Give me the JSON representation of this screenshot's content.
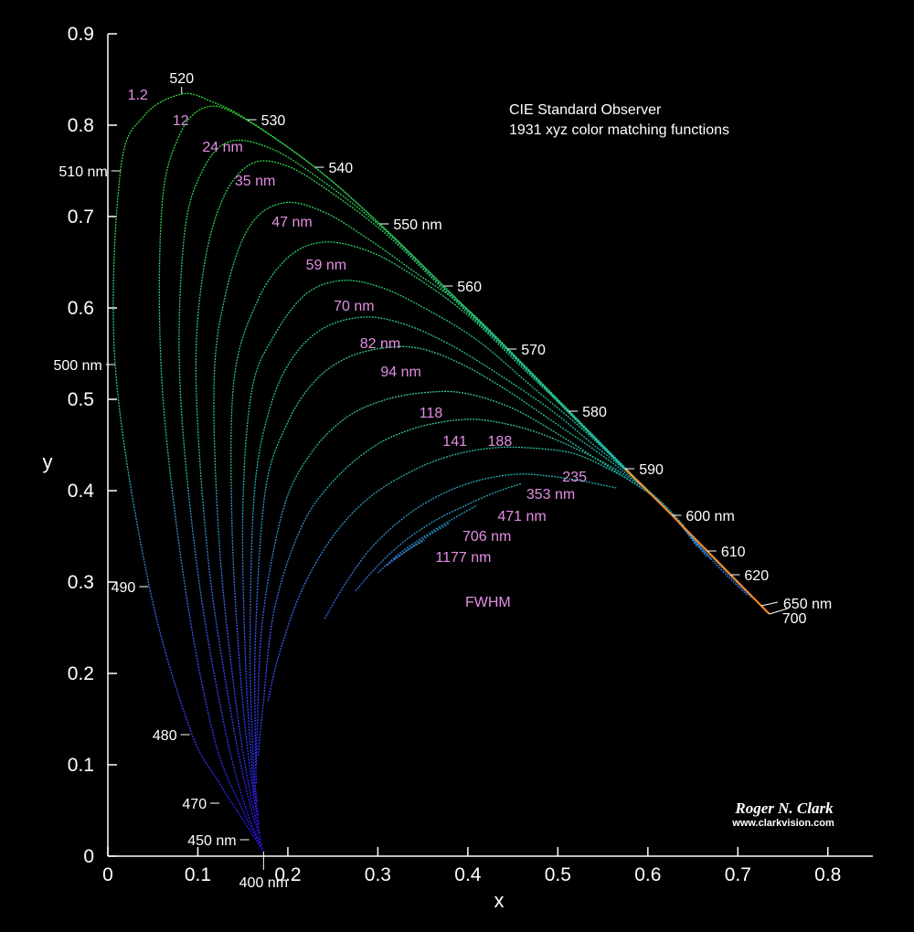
{
  "chart_data": {
    "type": "line",
    "title": [
      "CIE Standard Observer",
      "1931 xyz color matching functions"
    ],
    "xlabel": "x",
    "ylabel": "y",
    "xlim": [
      0,
      0.85
    ],
    "ylim": [
      0,
      0.9
    ],
    "xticks": [
      "0",
      "0.1",
      "0.2",
      "0.3",
      "0.4",
      "0.5",
      "0.6",
      "0.7",
      "0.8"
    ],
    "yticks": [
      "0",
      "0.1",
      "0.2",
      "0.3",
      "0.4",
      "0.5",
      "0.6",
      "0.7",
      "0.8",
      "0.9"
    ],
    "spectral_locus_labels": [
      {
        "text": "520",
        "x": 0.082,
        "y": 0.834
      },
      {
        "text": "530",
        "x": 0.155,
        "y": 0.806
      },
      {
        "text": "540",
        "x": 0.23,
        "y": 0.754
      },
      {
        "text": "550 nm",
        "x": 0.302,
        "y": 0.692
      },
      {
        "text": "560",
        "x": 0.373,
        "y": 0.624
      },
      {
        "text": "570",
        "x": 0.444,
        "y": 0.555
      },
      {
        "text": "580",
        "x": 0.512,
        "y": 0.487
      },
      {
        "text": "590",
        "x": 0.575,
        "y": 0.424
      },
      {
        "text": "600 nm",
        "x": 0.627,
        "y": 0.373
      },
      {
        "text": "610",
        "x": 0.666,
        "y": 0.334
      },
      {
        "text": "620",
        "x": 0.692,
        "y": 0.308
      },
      {
        "text": "650 nm",
        "x": 0.726,
        "y": 0.274
      },
      {
        "text": "700",
        "x": 0.735,
        "y": 0.265
      },
      {
        "text": "510 nm",
        "x": 0.014,
        "y": 0.75
      },
      {
        "text": "500 nm",
        "x": 0.008,
        "y": 0.538
      },
      {
        "text": "490",
        "x": 0.045,
        "y": 0.295
      },
      {
        "text": "480",
        "x": 0.091,
        "y": 0.133
      },
      {
        "text": "470",
        "x": 0.124,
        "y": 0.058
      },
      {
        "text": "450 nm",
        "x": 0.157,
        "y": 0.018
      },
      {
        "text": "400 nm",
        "x": 0.173,
        "y": 0.005
      }
    ],
    "fwhm_title": "FWHM",
    "series": [
      {
        "name": "1.2",
        "color": "#33dd33",
        "points": [
          [
            0.173,
            0.005
          ],
          [
            0.15,
            0.04
          ],
          [
            0.124,
            0.08
          ],
          [
            0.091,
            0.14
          ],
          [
            0.045,
            0.3
          ],
          [
            0.008,
            0.54
          ],
          [
            0.014,
            0.75
          ],
          [
            0.04,
            0.81
          ],
          [
            0.082,
            0.834
          ],
          [
            0.115,
            0.826
          ],
          [
            0.155,
            0.806
          ],
          [
            0.23,
            0.754
          ],
          [
            0.302,
            0.692
          ],
          [
            0.373,
            0.624
          ],
          [
            0.444,
            0.555
          ],
          [
            0.512,
            0.487
          ],
          [
            0.575,
            0.424
          ],
          [
            0.627,
            0.373
          ],
          [
            0.666,
            0.334
          ],
          [
            0.692,
            0.308
          ],
          [
            0.726,
            0.274
          ],
          [
            0.735,
            0.265
          ]
        ]
      },
      {
        "name": "12",
        "color": "#33dd33",
        "points": [
          [
            0.172,
            0.008
          ],
          [
            0.15,
            0.05
          ],
          [
            0.118,
            0.13
          ],
          [
            0.085,
            0.3
          ],
          [
            0.06,
            0.52
          ],
          [
            0.06,
            0.71
          ],
          [
            0.08,
            0.79
          ],
          [
            0.11,
            0.82
          ],
          [
            0.15,
            0.808
          ],
          [
            0.23,
            0.754
          ],
          [
            0.302,
            0.692
          ],
          [
            0.373,
            0.624
          ],
          [
            0.444,
            0.555
          ],
          [
            0.512,
            0.487
          ],
          [
            0.575,
            0.424
          ],
          [
            0.627,
            0.373
          ],
          [
            0.69,
            0.31
          ],
          [
            0.73,
            0.27
          ]
        ]
      },
      {
        "name": "24 nm",
        "color": "#33dd33",
        "points": [
          [
            0.171,
            0.012
          ],
          [
            0.154,
            0.05
          ],
          [
            0.13,
            0.14
          ],
          [
            0.1,
            0.31
          ],
          [
            0.08,
            0.52
          ],
          [
            0.085,
            0.68
          ],
          [
            0.105,
            0.75
          ],
          [
            0.135,
            0.782
          ],
          [
            0.18,
            0.775
          ],
          [
            0.23,
            0.745
          ],
          [
            0.302,
            0.69
          ],
          [
            0.373,
            0.622
          ],
          [
            0.444,
            0.554
          ],
          [
            0.512,
            0.486
          ],
          [
            0.575,
            0.423
          ],
          [
            0.627,
            0.373
          ],
          [
            0.69,
            0.31
          ],
          [
            0.728,
            0.272
          ]
        ]
      },
      {
        "name": "35 nm",
        "color": "#33dd33",
        "points": [
          [
            0.17,
            0.018
          ],
          [
            0.157,
            0.06
          ],
          [
            0.138,
            0.15
          ],
          [
            0.112,
            0.32
          ],
          [
            0.098,
            0.52
          ],
          [
            0.106,
            0.64
          ],
          [
            0.128,
            0.72
          ],
          [
            0.16,
            0.758
          ],
          [
            0.2,
            0.755
          ],
          [
            0.25,
            0.725
          ],
          [
            0.31,
            0.68
          ],
          [
            0.373,
            0.62
          ],
          [
            0.444,
            0.553
          ],
          [
            0.512,
            0.485
          ],
          [
            0.575,
            0.423
          ],
          [
            0.627,
            0.373
          ],
          [
            0.688,
            0.312
          ],
          [
            0.725,
            0.275
          ]
        ]
      },
      {
        "name": "47 nm",
        "color": "#33dd33",
        "points": [
          [
            0.169,
            0.025
          ],
          [
            0.158,
            0.07
          ],
          [
            0.142,
            0.17
          ],
          [
            0.124,
            0.34
          ],
          [
            0.118,
            0.52
          ],
          [
            0.132,
            0.62
          ],
          [
            0.158,
            0.69
          ],
          [
            0.195,
            0.715
          ],
          [
            0.24,
            0.705
          ],
          [
            0.29,
            0.675
          ],
          [
            0.34,
            0.64
          ],
          [
            0.4,
            0.598
          ],
          [
            0.46,
            0.54
          ],
          [
            0.52,
            0.48
          ],
          [
            0.58,
            0.42
          ],
          [
            0.627,
            0.373
          ],
          [
            0.685,
            0.315
          ],
          [
            0.72,
            0.28
          ]
        ]
      },
      {
        "name": "59 nm",
        "color": "#33dd33",
        "points": [
          [
            0.168,
            0.035
          ],
          [
            0.16,
            0.08
          ],
          [
            0.148,
            0.19
          ],
          [
            0.138,
            0.36
          ],
          [
            0.14,
            0.52
          ],
          [
            0.165,
            0.605
          ],
          [
            0.2,
            0.655
          ],
          [
            0.24,
            0.672
          ],
          [
            0.29,
            0.662
          ],
          [
            0.34,
            0.635
          ],
          [
            0.4,
            0.592
          ],
          [
            0.46,
            0.535
          ],
          [
            0.52,
            0.478
          ],
          [
            0.58,
            0.418
          ],
          [
            0.627,
            0.373
          ],
          [
            0.68,
            0.318
          ],
          [
            0.715,
            0.283
          ]
        ]
      },
      {
        "name": "70 nm",
        "color": "#33dd33",
        "points": [
          [
            0.167,
            0.045
          ],
          [
            0.161,
            0.09
          ],
          [
            0.153,
            0.21
          ],
          [
            0.15,
            0.38
          ],
          [
            0.16,
            0.51
          ],
          [
            0.185,
            0.57
          ],
          [
            0.22,
            0.615
          ],
          [
            0.26,
            0.63
          ],
          [
            0.305,
            0.622
          ],
          [
            0.355,
            0.598
          ],
          [
            0.41,
            0.565
          ],
          [
            0.47,
            0.515
          ],
          [
            0.53,
            0.465
          ],
          [
            0.58,
            0.418
          ],
          [
            0.627,
            0.373
          ],
          [
            0.675,
            0.32
          ],
          [
            0.71,
            0.286
          ]
        ]
      },
      {
        "name": "82 nm",
        "color": "#33dd33",
        "points": [
          [
            0.166,
            0.06
          ],
          [
            0.162,
            0.1
          ],
          [
            0.158,
            0.23
          ],
          [
            0.163,
            0.4
          ],
          [
            0.18,
            0.49
          ],
          [
            0.205,
            0.545
          ],
          [
            0.24,
            0.578
          ],
          [
            0.285,
            0.59
          ],
          [
            0.33,
            0.582
          ],
          [
            0.38,
            0.56
          ],
          [
            0.43,
            0.53
          ],
          [
            0.49,
            0.49
          ],
          [
            0.54,
            0.45
          ],
          [
            0.59,
            0.41
          ],
          [
            0.627,
            0.373
          ],
          [
            0.67,
            0.325
          ]
        ]
      },
      {
        "name": "94 nm",
        "color": "#55ee44",
        "points": [
          [
            0.165,
            0.08
          ],
          [
            0.164,
            0.12
          ],
          [
            0.164,
            0.24
          ],
          [
            0.175,
            0.4
          ],
          [
            0.2,
            0.475
          ],
          [
            0.23,
            0.52
          ],
          [
            0.265,
            0.545
          ],
          [
            0.305,
            0.556
          ],
          [
            0.345,
            0.556
          ],
          [
            0.39,
            0.54
          ],
          [
            0.44,
            0.512
          ],
          [
            0.5,
            0.472
          ],
          [
            0.55,
            0.438
          ],
          [
            0.6,
            0.4
          ],
          [
            0.627,
            0.373
          ],
          [
            0.665,
            0.328
          ]
        ]
      },
      {
        "name": "118",
        "color": "#ccee33",
        "points": [
          [
            0.165,
            0.1
          ],
          [
            0.166,
            0.14
          ],
          [
            0.172,
            0.26
          ],
          [
            0.195,
            0.38
          ],
          [
            0.225,
            0.44
          ],
          [
            0.265,
            0.48
          ],
          [
            0.31,
            0.5
          ],
          [
            0.36,
            0.508
          ],
          [
            0.4,
            0.506
          ],
          [
            0.45,
            0.49
          ],
          [
            0.5,
            0.462
          ],
          [
            0.55,
            0.43
          ],
          [
            0.6,
            0.398
          ],
          [
            0.627,
            0.375
          ],
          [
            0.655,
            0.338
          ]
        ]
      },
      {
        "name": "141",
        "color": "#e6ee33",
        "points": [
          [
            0.167,
            0.11
          ],
          [
            0.172,
            0.16
          ],
          [
            0.185,
            0.27
          ],
          [
            0.215,
            0.36
          ],
          [
            0.25,
            0.41
          ],
          [
            0.295,
            0.448
          ],
          [
            0.34,
            0.468
          ],
          [
            0.385,
            0.477
          ],
          [
            0.42,
            0.477
          ],
          [
            0.47,
            0.466
          ],
          [
            0.52,
            0.446
          ],
          [
            0.57,
            0.42
          ],
          [
            0.61,
            0.392
          ],
          [
            0.64,
            0.362
          ]
        ]
      },
      {
        "name": "188",
        "color": "#ffee44",
        "points": [
          [
            0.178,
            0.17
          ],
          [
            0.19,
            0.22
          ],
          [
            0.215,
            0.29
          ],
          [
            0.25,
            0.35
          ],
          [
            0.29,
            0.392
          ],
          [
            0.335,
            0.42
          ],
          [
            0.38,
            0.438
          ],
          [
            0.43,
            0.447
          ],
          [
            0.48,
            0.446
          ],
          [
            0.52,
            0.44
          ],
          [
            0.56,
            0.422
          ],
          [
            0.59,
            0.405
          ],
          [
            0.615,
            0.387
          ]
        ]
      },
      {
        "name": "235",
        "color": "#ffffcc",
        "points": [
          [
            0.241,
            0.26
          ],
          [
            0.265,
            0.3
          ],
          [
            0.295,
            0.34
          ],
          [
            0.335,
            0.375
          ],
          [
            0.375,
            0.398
          ],
          [
            0.415,
            0.412
          ],
          [
            0.455,
            0.418
          ],
          [
            0.49,
            0.416
          ],
          [
            0.53,
            0.41
          ],
          [
            0.565,
            0.403
          ]
        ]
      },
      {
        "name": "353 nm",
        "color": "#ffffff",
        "points": [
          [
            0.275,
            0.29
          ],
          [
            0.3,
            0.318
          ],
          [
            0.33,
            0.345
          ],
          [
            0.365,
            0.368
          ],
          [
            0.4,
            0.385
          ],
          [
            0.43,
            0.398
          ],
          [
            0.46,
            0.408
          ]
        ]
      },
      {
        "name": "471 nm",
        "color": "#ffffff",
        "points": [
          [
            0.3,
            0.31
          ],
          [
            0.325,
            0.332
          ],
          [
            0.355,
            0.352
          ],
          [
            0.385,
            0.37
          ],
          [
            0.41,
            0.384
          ]
        ]
      },
      {
        "name": "706 nm",
        "color": "#ffffff",
        "points": [
          [
            0.31,
            0.318
          ],
          [
            0.33,
            0.333
          ],
          [
            0.355,
            0.35
          ],
          [
            0.38,
            0.365
          ]
        ]
      },
      {
        "name": "1177 nm",
        "color": "#ffffff",
        "points": [
          [
            0.318,
            0.325
          ],
          [
            0.335,
            0.336
          ],
          [
            0.352,
            0.346
          ]
        ]
      }
    ],
    "fwhm_labels": [
      {
        "text": "1.2",
        "x": 0.022,
        "y": 0.828
      },
      {
        "text": "12",
        "x": 0.072,
        "y": 0.8
      },
      {
        "text": "24 nm",
        "x": 0.105,
        "y": 0.771
      },
      {
        "text": "35 nm",
        "x": 0.141,
        "y": 0.734
      },
      {
        "text": "47 nm",
        "x": 0.182,
        "y": 0.689
      },
      {
        "text": "59 nm",
        "x": 0.22,
        "y": 0.642
      },
      {
        "text": "70 nm",
        "x": 0.251,
        "y": 0.597
      },
      {
        "text": "82 nm",
        "x": 0.28,
        "y": 0.556
      },
      {
        "text": "94 nm",
        "x": 0.303,
        "y": 0.525
      },
      {
        "text": "118",
        "x": 0.346,
        "y": 0.48
      },
      {
        "text": "141",
        "x": 0.372,
        "y": 0.449
      },
      {
        "text": "188",
        "x": 0.422,
        "y": 0.449
      },
      {
        "text": "235",
        "x": 0.505,
        "y": 0.41
      },
      {
        "text": "353 nm",
        "x": 0.465,
        "y": 0.391
      },
      {
        "text": "471 nm",
        "x": 0.433,
        "y": 0.367
      },
      {
        "text": "706 nm",
        "x": 0.394,
        "y": 0.345
      },
      {
        "text": "1177 nm",
        "x": 0.364,
        "y": 0.322
      }
    ]
  },
  "signature": {
    "name": "Roger N. Clark",
    "url": "www.clarkvision.com"
  }
}
